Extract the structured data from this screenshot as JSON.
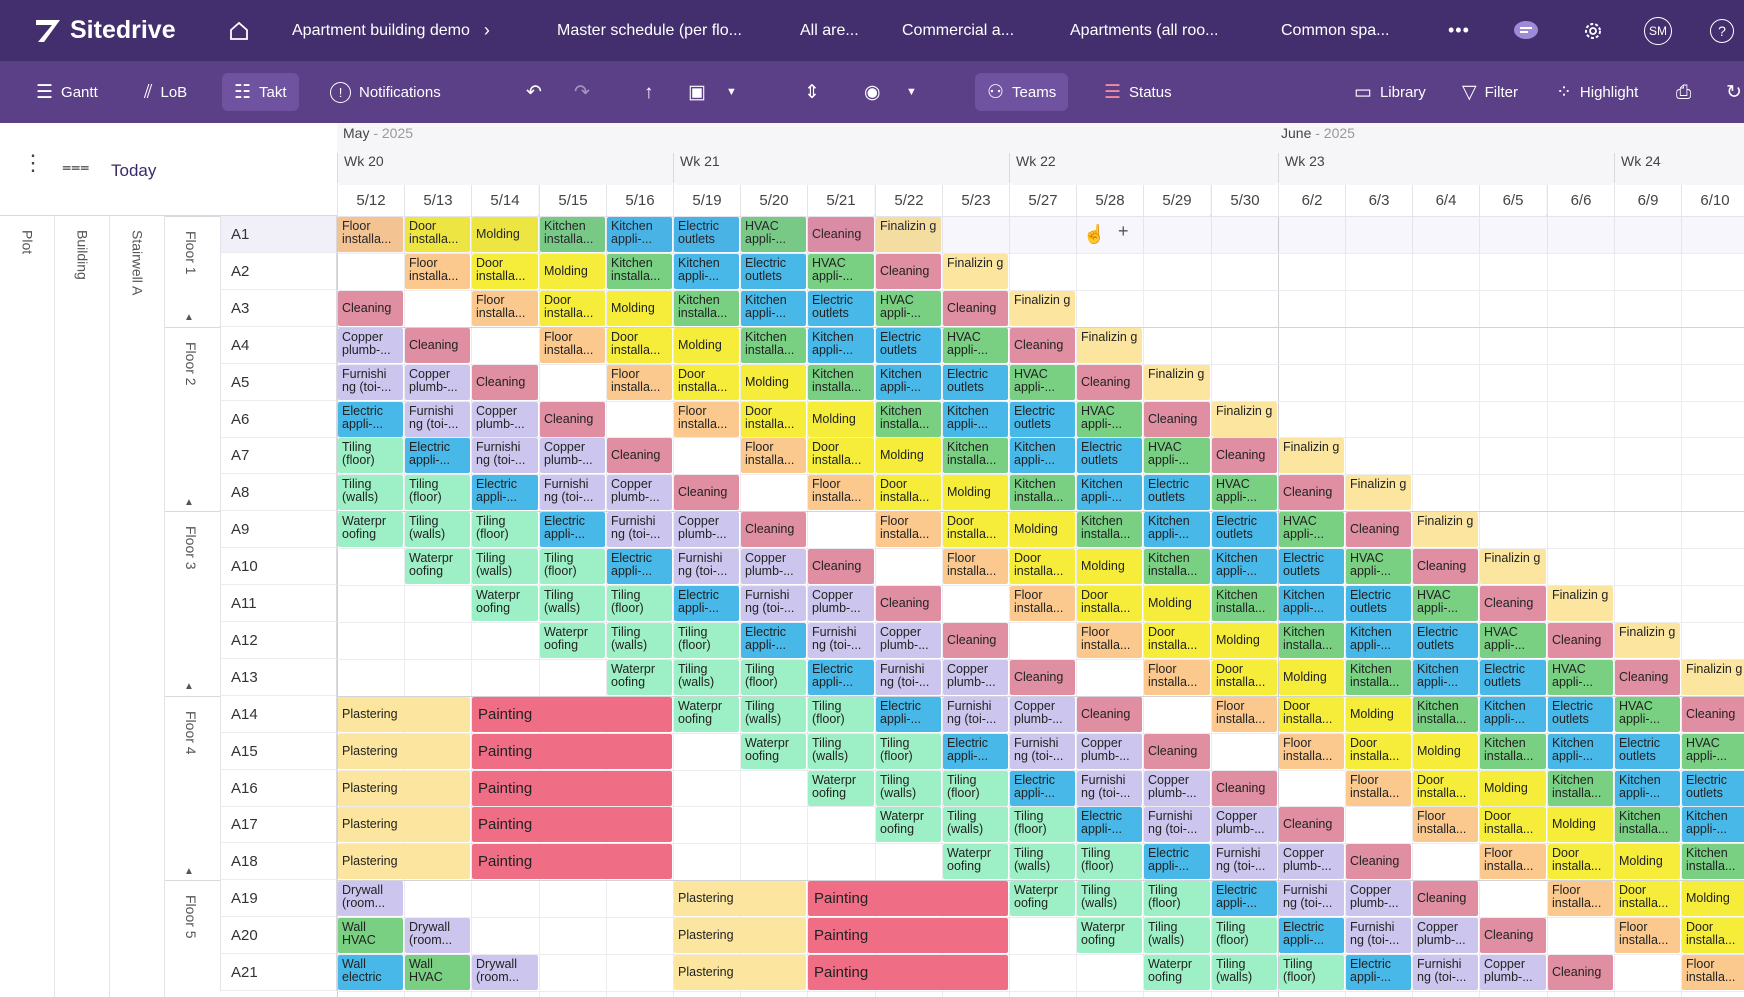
{
  "topbar": {
    "brand": "Sitedrive",
    "breadcrumb": "Apartment building demo",
    "tabs": [
      "Master schedule (per flo...",
      "All are...",
      "Commercial a...",
      "Apartments (all roo...",
      "Common spa..."
    ],
    "avatar": "SM",
    "more": "•••"
  },
  "toolbar": {
    "gantt": "Gantt",
    "lob": "LoB",
    "takt": "Takt",
    "notifications": "Notifications",
    "teams": "Teams",
    "status": "Status",
    "library": "Library",
    "filter": "Filter",
    "highlight": "Highlight"
  },
  "left": {
    "today": "Today",
    "plot": "Plot",
    "building": "Building",
    "stairwell": "Stairwell A",
    "floors": [
      "Floor 1",
      "Floor 2",
      "Floor 3",
      "Floor 4",
      "Floor 5"
    ],
    "rows": [
      "A1",
      "A2",
      "A3",
      "A4",
      "A5",
      "A6",
      "A7",
      "A8",
      "A9",
      "A10",
      "A11",
      "A12",
      "A13",
      "A14",
      "A15",
      "A16",
      "A17",
      "A18",
      "A19",
      "A20",
      "A21"
    ]
  },
  "calendar": {
    "months": [
      {
        "name": "May",
        "year": " - 2025"
      },
      {
        "name": "June",
        "year": " - 2025"
      }
    ],
    "weeks": [
      "Wk 20",
      "Wk 21",
      "Wk 22",
      "Wk 23",
      "Wk 24"
    ],
    "days": [
      "5/12",
      "5/13",
      "5/14",
      "5/15",
      "5/16",
      "5/19",
      "5/20",
      "5/21",
      "5/22",
      "5/23",
      "5/27",
      "5/28",
      "5/29",
      "5/30",
      "6/2",
      "6/3",
      "6/4",
      "6/5",
      "6/6",
      "6/9",
      "6/10"
    ]
  },
  "colors": {
    "Cl": "#e08fa2",
    "Fi": "#fbe59f",
    "Fl": "#fbc98e",
    "Do": "#f5ed3a",
    "Mo": "#f5ed3a",
    "Ki": "#79cf82",
    "Kp": "#48b8e8",
    "Eo": "#48b8e8",
    "Hv": "#79cf82",
    "Ea": "#48b8e8",
    "Co": "#ccc5ee",
    "Fu": "#ccc5ee",
    "Tf": "#9df0c5",
    "Tw": "#9df0c5",
    "Wa": "#9df0c5",
    "Pl": "#fbe59f",
    "Pa": "#f06e85",
    "Dr": "#ccc5ee",
    "Wh": "#79cf82",
    "We": "#48b8e8"
  },
  "tasks": {
    "Cl": "Cleaning",
    "Fi": "Finalizin g",
    "Fl": "Floor installa...",
    "Do": "Door installa...",
    "Mo": "Molding",
    "Ki": "Kitchen installa...",
    "Kp": "Kitchen appli-...",
    "Eo": "Electric outlets",
    "Hv": "HVAC appli-...",
    "Ea": "Electric appli-...",
    "Co": "Copper plumb-...",
    "Fu": "Furnishi ng (toi-...",
    "Tf": "Tiling (floor)",
    "Tw": "Tiling (walls)",
    "Wa": "Waterpr oofing",
    "Pl": "Plastering",
    "Pa": "Painting",
    "Dr": "Drywall (room...",
    "Wh": "Wall HVAC",
    "We": "Wall electric"
  },
  "schedule": [
    "Fl Do Mo Ki Kp Eo Hv Cl Fi",
    "_ Fl Do Mo Ki Kp Eo Hv Cl Fi",
    "Cl _ Fl Do Mo Ki Kp Eo Hv Cl Fi",
    "Co Cl _ Fl Do Mo Ki Kp Eo Hv Cl Fi",
    "Fu Co Cl _ Fl Do Mo Ki Kp Eo Hv Cl Fi",
    "Ea Fu Co Cl _ Fl Do Mo Ki Kp Eo Hv Cl Fi",
    "Tf Ea Fu Co Cl _ Fl Do Mo Ki Kp Eo Hv Cl Fi",
    "Tw Tf Ea Fu Co Cl _ Fl Do Mo Ki Kp Eo Hv Cl Fi",
    "Wa Tw Tf Ea Fu Co Cl _ Fl Do Mo Ki Kp Eo Hv Cl Fi",
    "_ Wa Tw Tf Ea Fu Co Cl _ Fl Do Mo Ki Kp Eo Hv Cl Fi",
    "_ _ Wa Tw Tf Ea Fu Co Cl _ Fl Do Mo Ki Kp Eo Hv Cl Fi",
    "_ _ _ Wa Tw Tf Ea Fu Co Cl _ Fl Do Mo Ki Kp Eo Hv Cl Fi",
    "_ _ _ _ Wa Tw Tf Ea Fu Co Cl _ Fl Do Mo Ki Kp Eo Hv Cl Fi",
    "Pl Pl Pa Pa Pa Wa Tw Tf Ea Fu Co Cl _ Fl Do Mo Ki Kp Eo Hv Cl",
    "Pl Pl Pa Pa Pa _ Wa Tw Tf Ea Fu Co Cl _ Fl Do Mo Ki Kp Eo Hv",
    "Pl Pl Pa Pa Pa _ _ Wa Tw Tf Ea Fu Co Cl _ Fl Do Mo Ki Kp Eo",
    "Pl Pl Pa Pa Pa _ _ _ Wa Tw Tf Ea Fu Co Cl _ Fl Do Mo Ki Kp",
    "Pl Pl Pa Pa Pa _ _ _ _ Wa Tw Tf Ea Fu Co Cl _ Fl Do Mo Ki",
    "Dr _ _ _ _ Pl Pl Pa Pa Pa Wa Tw Tf Ea Fu Co Cl _ Fl Do Mo",
    "Wh Dr _ _ _ Pl Pl Pa Pa Pa _ Wa Tw Tf Ea Fu Co Cl _ Fl Do",
    "We Wh Dr _ _ Pl Pl Pa Pa Pa _ _ Wa Tw Tf Ea Fu Co Cl _ Fl"
  ]
}
